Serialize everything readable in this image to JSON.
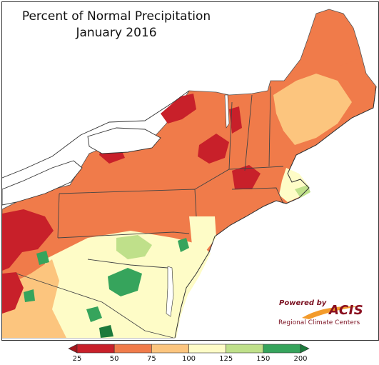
{
  "title": "Percent of Normal Precipitation",
  "subtitle": "January 2016",
  "logo": {
    "powered_by": "Powered by",
    "acis": "ACIS",
    "rcc": "Regional Climate Centers"
  },
  "legend": {
    "ticks": [
      "25",
      "50",
      "75",
      "100",
      "125",
      "150",
      "200"
    ],
    "bins": [
      {
        "from": 25,
        "to": 50,
        "color": "#c8202a"
      },
      {
        "from": 50,
        "to": 75,
        "color": "#f07b4a"
      },
      {
        "from": 75,
        "to": 100,
        "color": "#fcc57e"
      },
      {
        "from": 100,
        "to": 125,
        "color": "#fefcc7"
      },
      {
        "from": 125,
        "to": 150,
        "color": "#bfe08a"
      },
      {
        "from": 150,
        "to": 200,
        "color": "#36a45c"
      }
    ],
    "under_color": "#a3161c",
    "over_color": "#1d7a3c"
  },
  "colors": {
    "very_dry": "#c8202a",
    "dry": "#f07b4a",
    "below": "#fcc57e",
    "near": "#fefcc7",
    "above": "#bfe08a",
    "wet": "#36a45c",
    "very_wet": "#1d7a3c"
  }
}
